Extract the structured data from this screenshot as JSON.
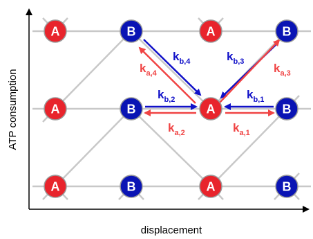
{
  "axes": {
    "y_label": "ATP consumption",
    "x_label": "displacement"
  },
  "colors": {
    "state_a_fill": "#e8242c",
    "state_b_fill": "#0a14b4",
    "node_stroke": "#9a9a9a",
    "lattice_line": "#c8c8c8",
    "rate_a": "#f04444",
    "rate_b": "#1010c8"
  },
  "states": {
    "a": "A",
    "b": "B"
  },
  "lattice": [
    [
      "A",
      "B",
      "A",
      "B"
    ],
    [
      "A",
      "B",
      "A",
      "B"
    ],
    [
      "A",
      "B",
      "A",
      "B"
    ]
  ],
  "rates": {
    "kb4": {
      "base": "k",
      "sub": "b,4"
    },
    "ka4": {
      "base": "k",
      "sub": "a,4"
    },
    "kb3": {
      "base": "k",
      "sub": "b,3"
    },
    "ka3": {
      "base": "k",
      "sub": "a,3"
    },
    "kb2": {
      "base": "k",
      "sub": "b,2"
    },
    "ka2": {
      "base": "k",
      "sub": "a,2"
    },
    "kb1": {
      "base": "k",
      "sub": "b,1"
    },
    "ka1": {
      "base": "k",
      "sub": "a,1"
    }
  }
}
